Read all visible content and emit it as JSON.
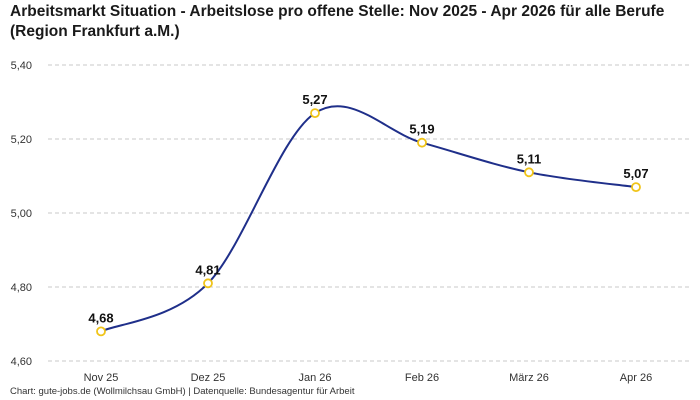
{
  "chart_data": {
    "type": "line",
    "title": "Arbeitsmarkt Situation - Arbeitslose pro offene Stelle: Nov 2025 - Apr 2026 für alle Berufe (Region Frankfurt a.M.)",
    "categories": [
      "Nov 25",
      "Dez 25",
      "Jan 26",
      "Feb 26",
      "März 26",
      "Apr 26"
    ],
    "values": [
      4.68,
      4.81,
      5.27,
      5.19,
      5.11,
      5.07
    ],
    "value_labels": [
      "4,68",
      "4,81",
      "5,27",
      "5,19",
      "5,11",
      "5,07"
    ],
    "ylim": [
      4.6,
      5.4
    ],
    "yticks": [
      4.6,
      4.8,
      5.0,
      5.2,
      5.4
    ],
    "ytick_labels": [
      "4,60",
      "4,80",
      "5,00",
      "5,20",
      "5,40"
    ],
    "xlabel": "",
    "ylabel": "",
    "grid": "horizontal-dashed",
    "line_color": "#1f2f8a",
    "marker_color": "#f0c419"
  },
  "footer": "Chart: gute-jobs.de (Wollmilchsau GmbH) | Datenquelle: Bundesagentur für Arbeit"
}
